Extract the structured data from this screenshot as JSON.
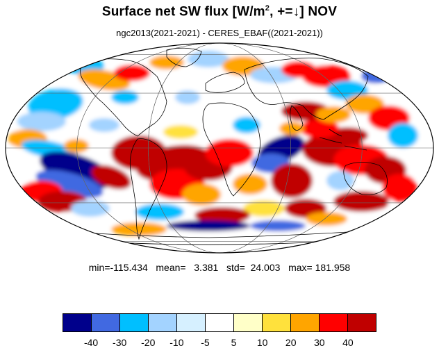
{
  "title": {
    "main": "Surface net SW flux [W/m",
    "sup": "2",
    "tail": ", +=↓]  NOV"
  },
  "subtitle": "ngc2013(2021-2021) - CERES_EBAF((2021-2021))",
  "stats": {
    "text": "min=-115.434   mean=   3.381   std=  24.003   max= 181.958"
  },
  "colorbar": {
    "colors": [
      "#00008b",
      "#4169e1",
      "#00bfff",
      "#a3d3ff",
      "#d6f0ff",
      "#ffffff",
      "#ffffc8",
      "#ffe13c",
      "#ffa500",
      "#ff0000",
      "#c00000"
    ],
    "labels": [
      "-40",
      "-30",
      "-20",
      "-10",
      "-5",
      "5",
      "10",
      "20",
      "30",
      "40"
    ]
  }
}
